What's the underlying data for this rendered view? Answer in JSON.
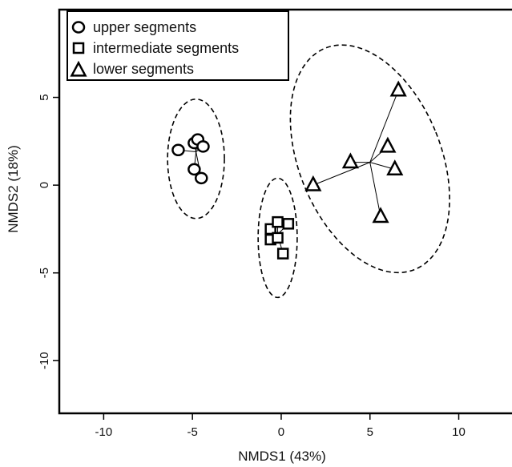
{
  "chart_data": {
    "type": "scatter",
    "xlabel": "NMDS1 (43%)",
    "ylabel": "NMDS2 (18%)",
    "xlim": [
      -12.5,
      13
    ],
    "ylim": [
      -13,
      10
    ],
    "x_ticks": [
      -10,
      -5,
      0,
      5,
      10
    ],
    "y_ticks": [
      -10,
      -5,
      0,
      5
    ],
    "x_tick_labels": [
      "-10",
      "-5",
      "0",
      "5",
      "10"
    ],
    "y_tick_labels": [
      "-10",
      "-5",
      "0",
      "5"
    ],
    "legend_position": "top-left",
    "series": [
      {
        "name": "upper segments",
        "marker": "circle",
        "points": [
          [
            -5.8,
            2.0
          ],
          [
            -4.9,
            2.4
          ],
          [
            -4.7,
            2.6
          ],
          [
            -4.4,
            2.2
          ],
          [
            -4.9,
            0.9
          ],
          [
            -4.5,
            0.4
          ]
        ],
        "centroid": [
          -4.8,
          1.9
        ],
        "ellipse": {
          "center": [
            -4.8,
            1.5
          ],
          "rx": 1.6,
          "ry": 3.4
        }
      },
      {
        "name": "intermediate segments",
        "marker": "square",
        "points": [
          [
            -0.6,
            -2.5
          ],
          [
            -0.2,
            -2.1
          ],
          [
            0.4,
            -2.2
          ],
          [
            -0.6,
            -3.1
          ],
          [
            -0.2,
            -3.0
          ],
          [
            0.1,
            -3.9
          ]
        ],
        "centroid": [
          -0.2,
          -2.8
        ],
        "ellipse": {
          "center": [
            -0.2,
            -3.0
          ],
          "rx": 1.1,
          "ry": 3.4
        }
      },
      {
        "name": "lower segments",
        "marker": "triangle",
        "points": [
          [
            6.6,
            5.4
          ],
          [
            6.0,
            2.2
          ],
          [
            3.9,
            1.3
          ],
          [
            6.4,
            0.9
          ],
          [
            1.8,
            0.0
          ],
          [
            5.6,
            -1.8
          ]
        ],
        "centroid": [
          5.0,
          1.3
        ],
        "ellipse": {
          "center": [
            5.0,
            1.5
          ],
          "rx": 4.0,
          "ry": 6.8,
          "rotation_deg": -22
        }
      }
    ]
  }
}
